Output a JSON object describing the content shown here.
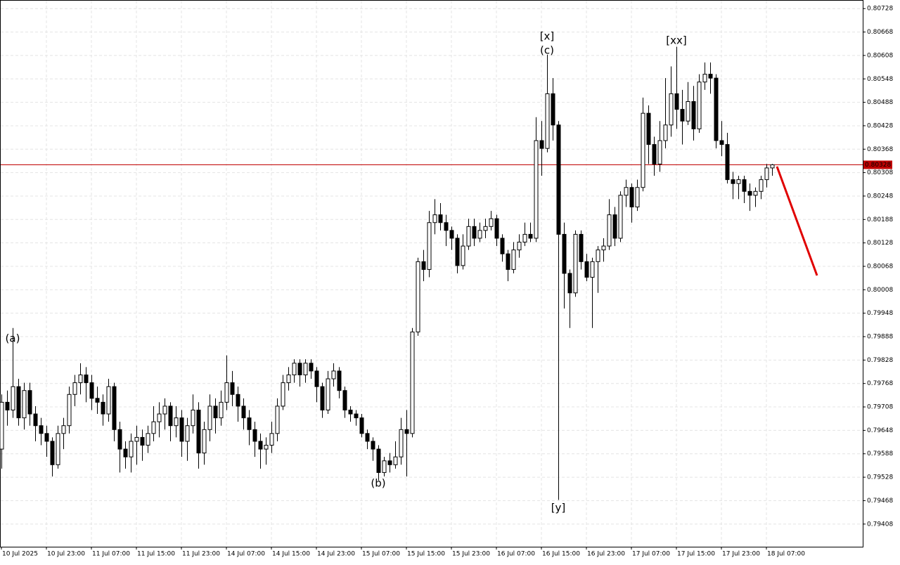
{
  "chart_data": {
    "type": "candlestick",
    "ylim": [
      0.7935,
      0.8075
    ],
    "yticks": [
      0.80728,
      0.80668,
      0.80608,
      0.80548,
      0.80488,
      0.80428,
      0.80368,
      0.80308,
      0.80248,
      0.80188,
      0.80128,
      0.80068,
      0.80008,
      0.79948,
      0.79888,
      0.79828,
      0.79768,
      0.79708,
      0.79648,
      0.79588,
      0.79528,
      0.79468,
      0.79408
    ],
    "grid": true,
    "up_color": "#ffffff",
    "down_color": "#000000",
    "current_price": 0.80328,
    "current_price_color": "#c00000",
    "categories": [
      "10 Jul 2025",
      null,
      null,
      null,
      null,
      null,
      null,
      null,
      "10 Jul 23:00",
      null,
      null,
      null,
      null,
      null,
      null,
      null,
      "11 Jul 07:00",
      null,
      null,
      null,
      null,
      null,
      null,
      null,
      "11 Jul 15:00",
      null,
      null,
      null,
      null,
      null,
      null,
      null,
      "11 Jul 23:00",
      null,
      null,
      null,
      null,
      null,
      null,
      null,
      "14 Jul 07:00",
      null,
      null,
      null,
      null,
      null,
      null,
      null,
      "14 Jul 15:00",
      null,
      null,
      null,
      null,
      null,
      null,
      null,
      "14 Jul 23:00",
      null,
      null,
      null,
      null,
      null,
      null,
      null,
      "15 Jul 07:00",
      null,
      null,
      null,
      null,
      null,
      null,
      null,
      "15 Jul 15:00",
      null,
      null,
      null,
      null,
      null,
      null,
      null,
      "15 Jul 23:00",
      null,
      null,
      null,
      null,
      null,
      null,
      null,
      "16 Jul 07:00",
      null,
      null,
      null,
      null,
      null,
      null,
      null,
      "16 Jul 15:00",
      null,
      null,
      null,
      null,
      null,
      null,
      null,
      "16 Jul 23:00",
      null,
      null,
      null,
      null,
      null,
      null,
      null,
      "17 Jul 07:00",
      null,
      null,
      null,
      null,
      null,
      null,
      null,
      "17 Jul 15:00",
      null,
      null,
      null,
      null,
      null,
      null,
      null,
      "17 Jul 23:00",
      null,
      null,
      null,
      null,
      null,
      null,
      null,
      "18 Jul 07:00",
      null
    ],
    "candles": [
      [
        0.796,
        0.7974,
        0.7955,
        0.7972
      ],
      [
        0.7972,
        0.7975,
        0.7966,
        0.797
      ],
      [
        0.797,
        0.7991,
        0.7968,
        0.7976
      ],
      [
        0.7976,
        0.7978,
        0.7966,
        0.7968
      ],
      [
        0.7968,
        0.7977,
        0.7965,
        0.7975
      ],
      [
        0.7975,
        0.7977,
        0.7966,
        0.7969
      ],
      [
        0.7969,
        0.7971,
        0.7962,
        0.7966
      ],
      [
        0.7966,
        0.7968,
        0.7961,
        0.7964
      ],
      [
        0.7964,
        0.7966,
        0.7958,
        0.7962
      ],
      [
        0.7962,
        0.7963,
        0.7953,
        0.7956
      ],
      [
        0.7956,
        0.7966,
        0.7955,
        0.7964
      ],
      [
        0.7964,
        0.7968,
        0.796,
        0.7966
      ],
      [
        0.7966,
        0.7976,
        0.7964,
        0.7974
      ],
      [
        0.7974,
        0.7979,
        0.7971,
        0.7977
      ],
      [
        0.7977,
        0.7982,
        0.7974,
        0.7979
      ],
      [
        0.7979,
        0.7981,
        0.7972,
        0.7977
      ],
      [
        0.7977,
        0.7979,
        0.797,
        0.7973
      ],
      [
        0.7973,
        0.7976,
        0.7969,
        0.7972
      ],
      [
        0.7972,
        0.7974,
        0.7966,
        0.7969
      ],
      [
        0.7969,
        0.7978,
        0.7967,
        0.7976
      ],
      [
        0.7976,
        0.7977,
        0.7962,
        0.7965
      ],
      [
        0.7965,
        0.7967,
        0.7954,
        0.796
      ],
      [
        0.796,
        0.7962,
        0.7955,
        0.7958
      ],
      [
        0.7958,
        0.7964,
        0.7954,
        0.7962
      ],
      [
        0.7962,
        0.7966,
        0.7956,
        0.7963
      ],
      [
        0.7963,
        0.7965,
        0.7957,
        0.7961
      ],
      [
        0.7961,
        0.7966,
        0.7959,
        0.7964
      ],
      [
        0.7964,
        0.7971,
        0.7962,
        0.7967
      ],
      [
        0.7967,
        0.7972,
        0.7963,
        0.7969
      ],
      [
        0.7969,
        0.7973,
        0.7965,
        0.7971
      ],
      [
        0.7971,
        0.7972,
        0.7962,
        0.7966
      ],
      [
        0.7966,
        0.7971,
        0.7963,
        0.7968
      ],
      [
        0.7968,
        0.797,
        0.7958,
        0.7962
      ],
      [
        0.7962,
        0.7968,
        0.7957,
        0.7966
      ],
      [
        0.7966,
        0.7974,
        0.7964,
        0.797
      ],
      [
        0.797,
        0.7972,
        0.7955,
        0.7959
      ],
      [
        0.7959,
        0.7967,
        0.7956,
        0.7965
      ],
      [
        0.7965,
        0.7974,
        0.7962,
        0.7971
      ],
      [
        0.7971,
        0.7973,
        0.7964,
        0.7968
      ],
      [
        0.7968,
        0.7975,
        0.7966,
        0.7972
      ],
      [
        0.7972,
        0.7984,
        0.797,
        0.7977
      ],
      [
        0.7977,
        0.798,
        0.7971,
        0.7974
      ],
      [
        0.7974,
        0.7976,
        0.7967,
        0.7971
      ],
      [
        0.7971,
        0.7973,
        0.7965,
        0.7968
      ],
      [
        0.7968,
        0.797,
        0.7961,
        0.7965
      ],
      [
        0.7965,
        0.7967,
        0.7958,
        0.7962
      ],
      [
        0.7962,
        0.7964,
        0.7955,
        0.796
      ],
      [
        0.796,
        0.7963,
        0.7956,
        0.7961
      ],
      [
        0.7961,
        0.7967,
        0.7959,
        0.7964
      ],
      [
        0.7964,
        0.7973,
        0.7962,
        0.7971
      ],
      [
        0.7971,
        0.7979,
        0.797,
        0.7977
      ],
      [
        0.7977,
        0.7981,
        0.7975,
        0.7979
      ],
      [
        0.7979,
        0.7983,
        0.7977,
        0.7982
      ],
      [
        0.7982,
        0.7983,
        0.7976,
        0.7979
      ],
      [
        0.7979,
        0.7983,
        0.7977,
        0.7982
      ],
      [
        0.7982,
        0.7983,
        0.7978,
        0.798
      ],
      [
        0.798,
        0.7981,
        0.7972,
        0.7976
      ],
      [
        0.7976,
        0.7977,
        0.7968,
        0.797
      ],
      [
        0.797,
        0.798,
        0.7969,
        0.7978
      ],
      [
        0.7978,
        0.7982,
        0.7976,
        0.798
      ],
      [
        0.798,
        0.7981,
        0.7973,
        0.7975
      ],
      [
        0.7975,
        0.7976,
        0.7968,
        0.797
      ],
      [
        0.797,
        0.7971,
        0.7967,
        0.7969
      ],
      [
        0.7969,
        0.797,
        0.7966,
        0.7968
      ],
      [
        0.7968,
        0.7969,
        0.7963,
        0.7964
      ],
      [
        0.7964,
        0.7965,
        0.796,
        0.7962
      ],
      [
        0.7962,
        0.7963,
        0.7957,
        0.796
      ],
      [
        0.796,
        0.7961,
        0.7952,
        0.7954
      ],
      [
        0.7954,
        0.7958,
        0.7953,
        0.7957
      ],
      [
        0.7957,
        0.7959,
        0.7954,
        0.7956
      ],
      [
        0.7956,
        0.7962,
        0.7955,
        0.7958
      ],
      [
        0.7958,
        0.7968,
        0.7956,
        0.7965
      ],
      [
        0.7965,
        0.797,
        0.7953,
        0.7964
      ],
      [
        0.7964,
        0.7991,
        0.7963,
        0.799
      ],
      [
        0.799,
        0.8009,
        0.7989,
        0.8008
      ],
      [
        0.8008,
        0.8011,
        0.8003,
        0.8006
      ],
      [
        0.8006,
        0.8021,
        0.8004,
        0.8018
      ],
      [
        0.8018,
        0.8024,
        0.8015,
        0.802
      ],
      [
        0.802,
        0.8023,
        0.8016,
        0.8018
      ],
      [
        0.8018,
        0.802,
        0.8012,
        0.8016
      ],
      [
        0.8016,
        0.8017,
        0.8011,
        0.8014
      ],
      [
        0.8014,
        0.8015,
        0.8005,
        0.8007
      ],
      [
        0.8007,
        0.8015,
        0.8006,
        0.8012
      ],
      [
        0.8012,
        0.8019,
        0.8011,
        0.8017
      ],
      [
        0.8017,
        0.8019,
        0.8012,
        0.8014
      ],
      [
        0.8014,
        0.8018,
        0.8013,
        0.8016
      ],
      [
        0.8016,
        0.8019,
        0.8014,
        0.8017
      ],
      [
        0.8017,
        0.8021,
        0.8016,
        0.8019
      ],
      [
        0.8019,
        0.802,
        0.8012,
        0.8014
      ],
      [
        0.8014,
        0.8015,
        0.8008,
        0.801
      ],
      [
        0.801,
        0.8011,
        0.8003,
        0.8006
      ],
      [
        0.8006,
        0.8013,
        0.8005,
        0.8011
      ],
      [
        0.8011,
        0.8015,
        0.8009,
        0.8013
      ],
      [
        0.8013,
        0.8018,
        0.8012,
        0.8015
      ],
      [
        0.8015,
        0.8018,
        0.8013,
        0.8014
      ],
      [
        0.8014,
        0.8045,
        0.8013,
        0.8039
      ],
      [
        0.8039,
        0.8044,
        0.803,
        0.8037
      ],
      [
        0.8037,
        0.8061,
        0.8036,
        0.8051
      ],
      [
        0.8051,
        0.8055,
        0.8039,
        0.8043
      ],
      [
        0.8043,
        0.8044,
        0.7947,
        0.8015
      ],
      [
        0.8015,
        0.8018,
        0.7996,
        0.8005
      ],
      [
        0.8005,
        0.8006,
        0.7991,
        0.8
      ],
      [
        0.8,
        0.8016,
        0.7999,
        0.8015
      ],
      [
        0.8015,
        0.8016,
        0.8006,
        0.8008
      ],
      [
        0.8008,
        0.801,
        0.8003,
        0.8004
      ],
      [
        0.8004,
        0.8009,
        0.7991,
        0.8008
      ],
      [
        0.8008,
        0.8012,
        0.8,
        0.8011
      ],
      [
        0.8011,
        0.8014,
        0.8008,
        0.8012
      ],
      [
        0.8012,
        0.8024,
        0.8011,
        0.802
      ],
      [
        0.802,
        0.8022,
        0.8012,
        0.8014
      ],
      [
        0.8014,
        0.8026,
        0.8013,
        0.8025
      ],
      [
        0.8025,
        0.8029,
        0.8022,
        0.8027
      ],
      [
        0.8027,
        0.8028,
        0.8018,
        0.8022
      ],
      [
        0.8022,
        0.8029,
        0.8021,
        0.8027
      ],
      [
        0.8027,
        0.805,
        0.8026,
        0.8046
      ],
      [
        0.8046,
        0.8048,
        0.8033,
        0.8038
      ],
      [
        0.8038,
        0.804,
        0.803,
        0.8033
      ],
      [
        0.8033,
        0.8044,
        0.8031,
        0.8039
      ],
      [
        0.8039,
        0.8055,
        0.8037,
        0.8043
      ],
      [
        0.8043,
        0.8058,
        0.804,
        0.8051
      ],
      [
        0.8051,
        0.8063,
        0.8042,
        0.8047
      ],
      [
        0.8047,
        0.8052,
        0.8038,
        0.8044
      ],
      [
        0.8044,
        0.8054,
        0.8043,
        0.8049
      ],
      [
        0.8049,
        0.8053,
        0.8039,
        0.8042
      ],
      [
        0.8042,
        0.8056,
        0.8041,
        0.8054
      ],
      [
        0.8054,
        0.8059,
        0.8052,
        0.8056
      ],
      [
        0.8056,
        0.8059,
        0.8051,
        0.8055
      ],
      [
        0.8055,
        0.8056,
        0.8037,
        0.8039
      ],
      [
        0.8039,
        0.8044,
        0.8035,
        0.8038
      ],
      [
        0.8038,
        0.8041,
        0.8028,
        0.8029
      ],
      [
        0.8029,
        0.8031,
        0.8024,
        0.8028
      ],
      [
        0.8028,
        0.803,
        0.8024,
        0.8029
      ],
      [
        0.8029,
        0.803,
        0.8023,
        0.8026
      ],
      [
        0.8026,
        0.8028,
        0.8021,
        0.8025
      ],
      [
        0.8025,
        0.8027,
        0.8022,
        0.8026
      ],
      [
        0.8026,
        0.803,
        0.8024,
        0.8029
      ],
      [
        0.8029,
        0.8033,
        0.8027,
        0.8032
      ],
      [
        0.8032,
        0.8033,
        0.803,
        0.80328
      ]
    ],
    "annotations": [
      {
        "text": "(a)",
        "color": "#1a1aff"
      },
      {
        "text": "(b)",
        "color": "#1a1aff"
      },
      {
        "text": "[x]",
        "color": "#3ccd3c"
      },
      {
        "text": "(c)",
        "color": "#1a1aff"
      },
      {
        "text": "[y]",
        "color": "#3ccd3c"
      },
      {
        "text": "[xx]",
        "color": "#3ccd3c"
      }
    ]
  }
}
